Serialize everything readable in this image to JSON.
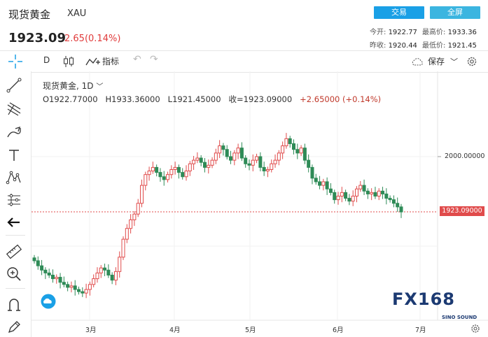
{
  "header": {
    "title": "现货黄金",
    "symbol": "XAU",
    "price": "1923.09",
    "change": "2.65(0.14%)",
    "trade_button": "交易",
    "fullscreen_button": "全屏",
    "stats": {
      "open_label": "今开:",
      "open_value": "1922.77",
      "high_label": "最高价:",
      "high_value": "1933.36",
      "prev_close_label": "昨收:",
      "prev_close_value": "1920.44",
      "low_label": "最低价:",
      "low_value": "1921.45"
    }
  },
  "toolbar": {
    "interval": "D",
    "indicators_label": "指标",
    "save_label": "保存"
  },
  "chart": {
    "legend_title": "现货黄金, 1D",
    "legend_ohlc": {
      "o": "O1922.77000",
      "h": "H1933.36000",
      "l": "L1921.45000",
      "c": "收=1923.09000",
      "chg": "+2.65000 (+0.14%)"
    },
    "price_tag": "1923.09000",
    "axis_2000": "2000.00000",
    "months": [
      "3月",
      "4月",
      "5月",
      "6月",
      "7月"
    ],
    "watermark_text": "FX168",
    "watermark_sub": "SINO SOUND"
  },
  "chart_data": {
    "type": "candlestick",
    "y_axis_labels": [
      "2000.00000",
      "1923.09000"
    ],
    "x_labels": [
      "3月",
      "4月",
      "5月",
      "6月",
      "7月"
    ],
    "last_close": 1923.09,
    "closes": [
      1855,
      1848,
      1842,
      1838,
      1835,
      1830,
      1832,
      1825,
      1822,
      1818,
      1820,
      1815,
      1812,
      1810,
      1815,
      1822,
      1830,
      1838,
      1845,
      1842,
      1835,
      1828,
      1840,
      1860,
      1885,
      1900,
      1912,
      1920,
      1935,
      1960,
      1975,
      1980,
      1985,
      1978,
      1972,
      1968,
      1975,
      1982,
      1985,
      1978,
      1972,
      1980,
      1990,
      1995,
      1998,
      1992,
      1985,
      1988,
      1995,
      2005,
      2015,
      2010,
      2000,
      1995,
      2005,
      2012,
      1998,
      1990,
      1988,
      1995,
      2000,
      1985,
      1980,
      1982,
      1990,
      1995,
      2005,
      2015,
      2025,
      2018,
      2010,
      2005,
      2012,
      1995,
      1985,
      1970,
      1965,
      1960,
      1965,
      1955,
      1950,
      1940,
      1945,
      1950,
      1942,
      1938,
      1945,
      1955,
      1960,
      1952,
      1948,
      1950,
      1945,
      1952,
      1948,
      1942,
      1940,
      1935,
      1930,
      1923
    ]
  }
}
